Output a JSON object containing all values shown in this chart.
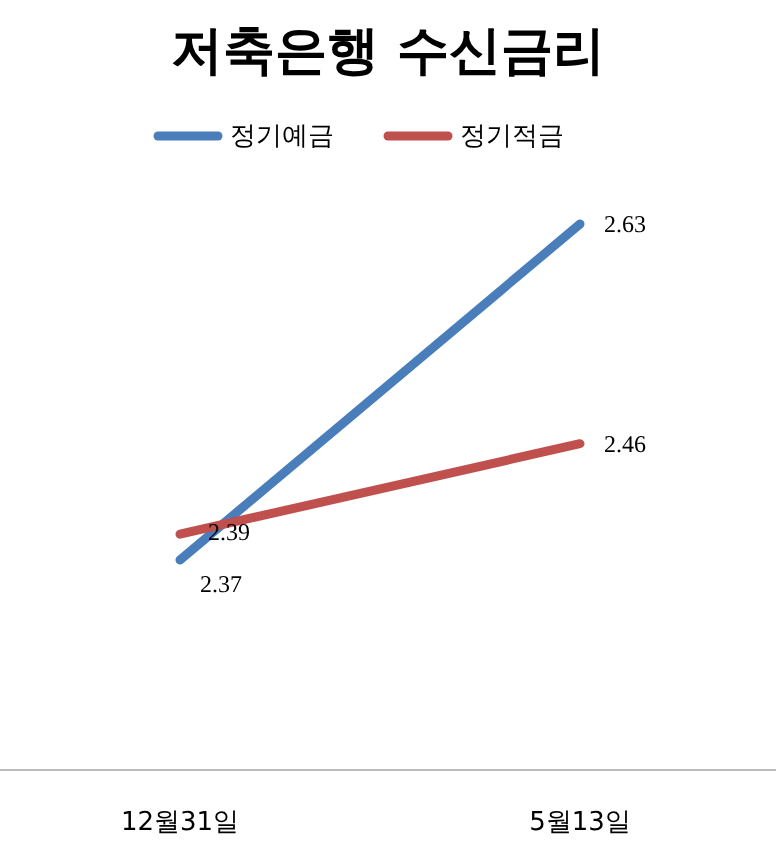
{
  "chart_data": {
    "type": "line",
    "title": "저축은행 수신금리",
    "categories": [
      "12월31일",
      "5월13일"
    ],
    "series": [
      {
        "name": "정기예금",
        "color": "#4a7ebb",
        "values": [
          2.37,
          2.63
        ]
      },
      {
        "name": "정기적금",
        "color": "#c0504d",
        "values": [
          2.39,
          2.46
        ]
      }
    ],
    "data_labels": true,
    "legend": "top",
    "marker": "none",
    "line_style": "solid"
  }
}
